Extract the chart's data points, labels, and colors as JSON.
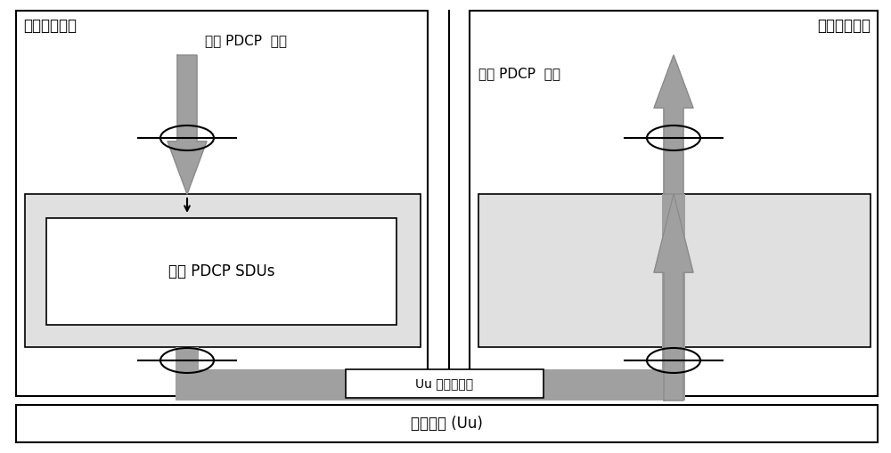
{
  "fig_width": 10.0,
  "fig_height": 5.09,
  "bg_color": "#ffffff",
  "box_color": "#ffffff",
  "light_gray_fill": "#e0e0e0",
  "arrow_gray": "#a0a0a0",
  "border_color": "#000000",
  "text_color": "#000000",
  "device1_label": "第一通信设备",
  "device2_label": "第二通信设备",
  "send_pdcp_label": "发送 PDCP  实体",
  "recv_pdcp_label": "接收 PDCP  实体",
  "store_label": "保存 PDCP SDUs",
  "uu_unavail_label": "Uu 接口不可用",
  "wireless_label": "无线接口 (Uu)"
}
